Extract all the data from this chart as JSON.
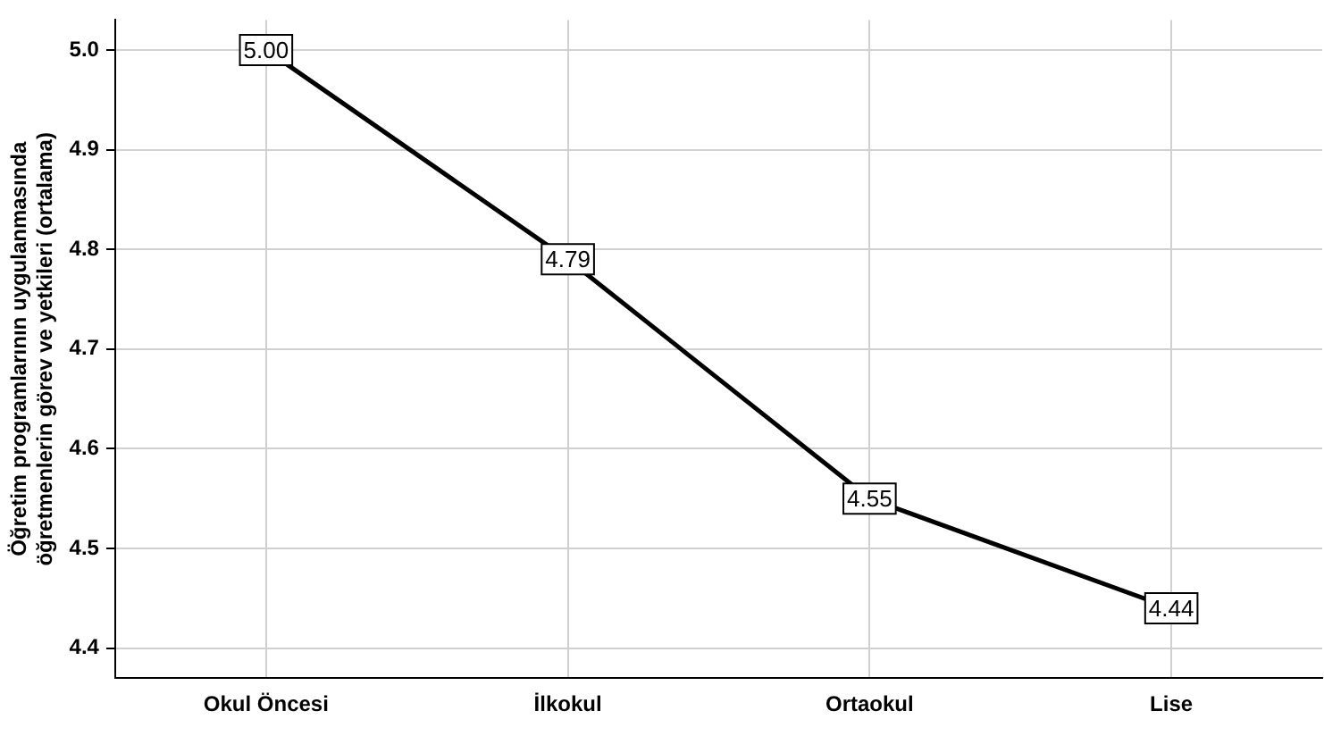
{
  "chart_data": {
    "type": "line",
    "ylabel": "Öğretim programlarının uygulanmasında\nöğretmenlerin görev ve yetkileri (ortalama)",
    "categories": [
      "Okul Öncesi",
      "İlkokul",
      "Ortaokul",
      "Lise"
    ],
    "series": [
      {
        "color": "#000000",
        "values": [
          5.0,
          4.79,
          4.55,
          4.44
        ],
        "value_labels": [
          "5.00",
          "4.79",
          "4.55",
          "4.44"
        ]
      }
    ],
    "ylim": [
      4.37,
      5.03
    ],
    "yticks": [
      {
        "value": 4.4,
        "label": "4.4"
      },
      {
        "value": 4.5,
        "label": "4.5"
      },
      {
        "value": 4.6,
        "label": "4.6"
      },
      {
        "value": 4.7,
        "label": "4.7"
      },
      {
        "value": 4.8,
        "label": "4.8"
      },
      {
        "value": 4.9,
        "label": "4.9"
      },
      {
        "value": 5.0,
        "label": "5.0"
      }
    ],
    "grid": true,
    "legend": false,
    "marker": "square",
    "line_style": "solid"
  }
}
